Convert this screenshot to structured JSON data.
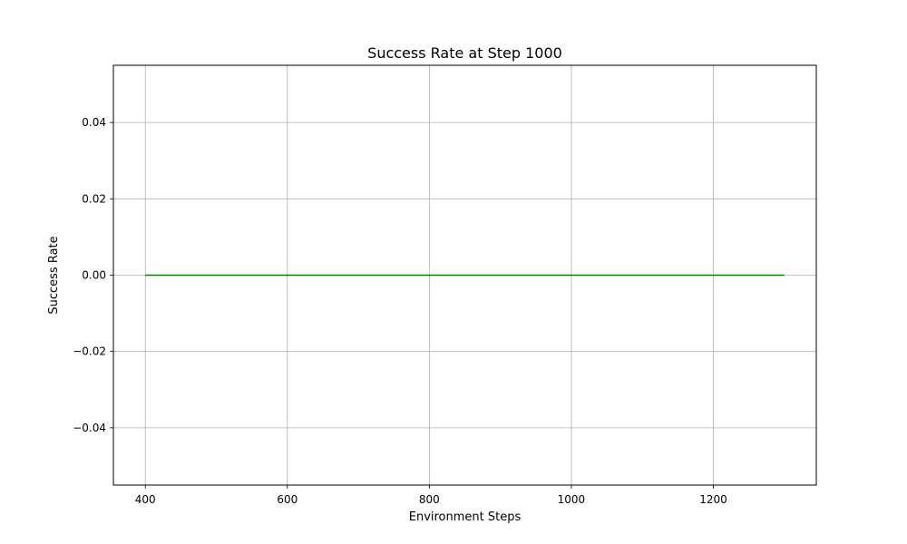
{
  "chart_data": {
    "type": "line",
    "title": "Success Rate at Step 1000",
    "xlabel": "Environment Steps",
    "ylabel": "Success Rate",
    "xlim": [
      355,
      1345
    ],
    "ylim": [
      -0.055,
      0.055
    ],
    "xticks": [
      400,
      600,
      800,
      1000,
      1200
    ],
    "xtick_labels": [
      "400",
      "600",
      "800",
      "1000",
      "1200"
    ],
    "yticks": [
      -0.04,
      -0.02,
      0.0,
      0.02,
      0.04
    ],
    "ytick_labels": [
      "−0.04",
      "−0.02",
      "0.00",
      "0.02",
      "0.04"
    ],
    "grid": true,
    "series": [
      {
        "color": "#008000",
        "x": [
          400,
          1300
        ],
        "y": [
          0.0,
          0.0
        ]
      }
    ]
  }
}
